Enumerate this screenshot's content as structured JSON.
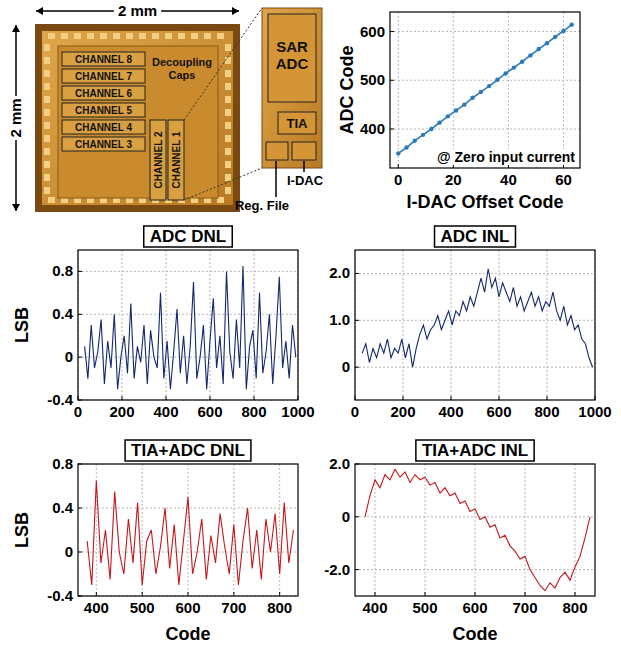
{
  "chip_photo": {
    "width_label": "2 mm",
    "height_label": "2 mm",
    "channels": [
      "CHANNEL 8",
      "CHANNEL 7",
      "CHANNEL 6",
      "CHANNEL 5",
      "CHANNEL 4",
      "CHANNEL 3"
    ],
    "vertical_channels": [
      "CHANNEL 2",
      "CHANNEL 1"
    ],
    "caps_label": "Decoupling Caps",
    "adc_label": "SAR ADC",
    "tia_label": "TIA",
    "idac_label": "I-DAC",
    "reg_label": "Reg. File"
  },
  "chart_data": [
    {
      "type": "line",
      "annotation": "@ Zero input current",
      "x_label": "I-DAC Offset Code",
      "y_label": "ADC Code",
      "x": [
        0,
        3,
        6,
        9,
        12,
        15,
        18,
        21,
        24,
        27,
        30,
        33,
        36,
        39,
        42,
        45,
        48,
        51,
        54,
        57,
        60,
        63
      ],
      "series": [
        {
          "values": [
            350,
            362,
            376,
            388,
            400,
            413,
            426,
            438,
            450,
            464,
            476,
            488,
            501,
            514,
            526,
            538,
            551,
            564,
            576,
            589,
            601,
            614
          ],
          "color": "#2a7ab9",
          "marker": "circle"
        }
      ],
      "xlim": [
        -3,
        66
      ],
      "ylim": [
        320,
        640
      ],
      "xticks": [
        0,
        20,
        40,
        60
      ],
      "yticks": [
        400,
        500,
        600
      ],
      "grid": true
    },
    {
      "type": "line",
      "title": "ADC DNL",
      "y_label": "LSB",
      "x": [
        30,
        45,
        60,
        75,
        90,
        105,
        120,
        135,
        150,
        165,
        180,
        195,
        210,
        225,
        240,
        255,
        270,
        285,
        300,
        315,
        330,
        345,
        360,
        375,
        390,
        405,
        420,
        435,
        450,
        465,
        480,
        495,
        510,
        525,
        540,
        555,
        570,
        585,
        600,
        615,
        630,
        645,
        660,
        675,
        690,
        705,
        720,
        735,
        750,
        765,
        780,
        795,
        810,
        825,
        840,
        855,
        870,
        885,
        900,
        915,
        930,
        945,
        960,
        975,
        990
      ],
      "series": [
        {
          "values": [
            0.1,
            -0.2,
            0.3,
            -0.1,
            0.05,
            0.35,
            -0.25,
            0.15,
            -0.1,
            0.4,
            -0.3,
            0.0,
            0.2,
            -0.15,
            0.5,
            -0.2,
            0.1,
            -0.05,
            0.3,
            -0.25,
            0.25,
            0.0,
            -0.1,
            0.6,
            -0.2,
            0.15,
            -0.3,
            0.05,
            0.45,
            -0.15,
            0.2,
            -0.25,
            0.1,
            0.7,
            -0.2,
            0.0,
            0.3,
            -0.3,
            0.15,
            0.55,
            -0.1,
            0.2,
            -0.25,
            0.8,
            0.05,
            -0.2,
            0.35,
            -0.1,
            0.85,
            -0.3,
            0.1,
            0.25,
            -0.2,
            0.6,
            -0.15,
            0.05,
            0.4,
            -0.25,
            0.2,
            0.75,
            -0.1,
            0.15,
            -0.2,
            0.3,
            0.0
          ],
          "color": "#14286e"
        }
      ],
      "xlim": [
        0,
        1000
      ],
      "ylim": [
        -0.4,
        1.0
      ],
      "xticks": [
        0,
        200,
        400,
        600,
        800,
        1000
      ],
      "yticks": [
        -0.4,
        0,
        0.4,
        0.8
      ],
      "grid": true
    },
    {
      "type": "line",
      "title": "ADC INL",
      "x": [
        30,
        45,
        60,
        75,
        90,
        105,
        120,
        135,
        150,
        165,
        180,
        195,
        210,
        225,
        240,
        255,
        270,
        285,
        300,
        315,
        330,
        345,
        360,
        375,
        390,
        405,
        420,
        435,
        450,
        465,
        480,
        495,
        510,
        525,
        540,
        555,
        570,
        585,
        600,
        615,
        630,
        645,
        660,
        675,
        690,
        705,
        720,
        735,
        750,
        765,
        780,
        795,
        810,
        825,
        840,
        855,
        870,
        885,
        900,
        915,
        930,
        945,
        960,
        975,
        990
      ],
      "series": [
        {
          "values": [
            0.3,
            0.5,
            0.1,
            0.4,
            0.2,
            0.5,
            0.3,
            0.6,
            0.2,
            0.4,
            0.3,
            0.6,
            0.2,
            0.5,
            0.0,
            0.4,
            0.7,
            0.9,
            0.6,
            0.8,
            0.9,
            1.1,
            0.8,
            1.0,
            1.2,
            0.9,
            1.2,
            1.1,
            1.4,
            1.2,
            1.5,
            1.3,
            1.6,
            1.9,
            1.6,
            2.1,
            1.7,
            1.9,
            1.5,
            1.8,
            1.6,
            1.4,
            1.7,
            1.3,
            1.5,
            1.2,
            1.4,
            1.6,
            1.3,
            1.5,
            1.2,
            1.4,
            1.3,
            1.6,
            1.2,
            1.0,
            1.3,
            0.9,
            1.1,
            0.8,
            0.9,
            0.6,
            0.5,
            0.2,
            0.0
          ],
          "color": "#14286e"
        }
      ],
      "xlim": [
        0,
        1000
      ],
      "ylim": [
        -0.7,
        2.5
      ],
      "xticks": [
        0,
        200,
        400,
        600,
        800,
        1000
      ],
      "yticks": [
        0,
        {
          "value": 1,
          "label": "1.0"
        },
        {
          "value": 2,
          "label": "2.0"
        }
      ],
      "grid": true
    },
    {
      "type": "line",
      "title": "TIA+ADC DNL",
      "y_label": "LSB",
      "x_label": "Code",
      "x": [
        380,
        390,
        400,
        410,
        420,
        430,
        440,
        450,
        460,
        470,
        480,
        490,
        500,
        510,
        520,
        530,
        540,
        550,
        560,
        570,
        580,
        590,
        600,
        610,
        620,
        630,
        640,
        650,
        660,
        670,
        680,
        690,
        700,
        710,
        720,
        730,
        740,
        750,
        760,
        770,
        780,
        790,
        800,
        810,
        820,
        830
      ],
      "series": [
        {
          "values": [
            0.1,
            -0.3,
            0.65,
            -0.1,
            0.2,
            -0.25,
            0.55,
            0.0,
            -0.2,
            0.3,
            -0.1,
            0.45,
            -0.3,
            0.1,
            0.2,
            -0.2,
            0.05,
            0.4,
            -0.15,
            0.25,
            -0.3,
            0.1,
            0.5,
            -0.2,
            0.0,
            0.3,
            -0.25,
            0.15,
            -0.1,
            0.35,
            0.05,
            -0.2,
            0.25,
            -0.3,
            0.1,
            0.4,
            -0.15,
            0.2,
            -0.25,
            0.3,
            0.0,
            0.35,
            -0.2,
            0.45,
            -0.1,
            0.2
          ],
          "color": "#c4161c"
        }
      ],
      "xlim": [
        360,
        840
      ],
      "ylim": [
        -0.4,
        0.8
      ],
      "xticks": [
        400,
        500,
        600,
        700,
        800
      ],
      "yticks": [
        -0.4,
        0,
        0.4,
        0.8
      ],
      "grid": true
    },
    {
      "type": "line",
      "title": "TIA+ADC INL",
      "x_label": "Code",
      "x": [
        380,
        390,
        400,
        410,
        420,
        430,
        440,
        450,
        460,
        470,
        480,
        490,
        500,
        510,
        520,
        530,
        540,
        550,
        560,
        570,
        580,
        590,
        600,
        610,
        620,
        630,
        640,
        650,
        660,
        670,
        680,
        690,
        700,
        710,
        720,
        730,
        740,
        750,
        760,
        770,
        780,
        790,
        800,
        810,
        820,
        830
      ],
      "series": [
        {
          "values": [
            0.0,
            0.8,
            1.4,
            1.1,
            1.6,
            1.4,
            1.8,
            1.5,
            1.7,
            1.3,
            1.6,
            1.4,
            1.5,
            1.2,
            1.3,
            0.9,
            1.1,
            0.8,
            0.9,
            0.5,
            0.6,
            0.2,
            0.3,
            -0.1,
            0.0,
            -0.4,
            -0.3,
            -0.8,
            -0.7,
            -1.1,
            -1.3,
            -1.6,
            -1.5,
            -2.0,
            -2.3,
            -2.6,
            -2.8,
            -2.5,
            -2.7,
            -2.3,
            -2.1,
            -2.4,
            -1.9,
            -1.5,
            -0.8,
            0.0
          ],
          "color": "#c4161c"
        }
      ],
      "xlim": [
        360,
        840
      ],
      "ylim": [
        -3.0,
        2.0
      ],
      "xticks": [
        400,
        500,
        600,
        700,
        800
      ],
      "yticks": [
        {
          "value": -2,
          "label": "-2.0"
        },
        0,
        {
          "value": 2,
          "label": "2.0"
        }
      ],
      "grid": true
    }
  ]
}
